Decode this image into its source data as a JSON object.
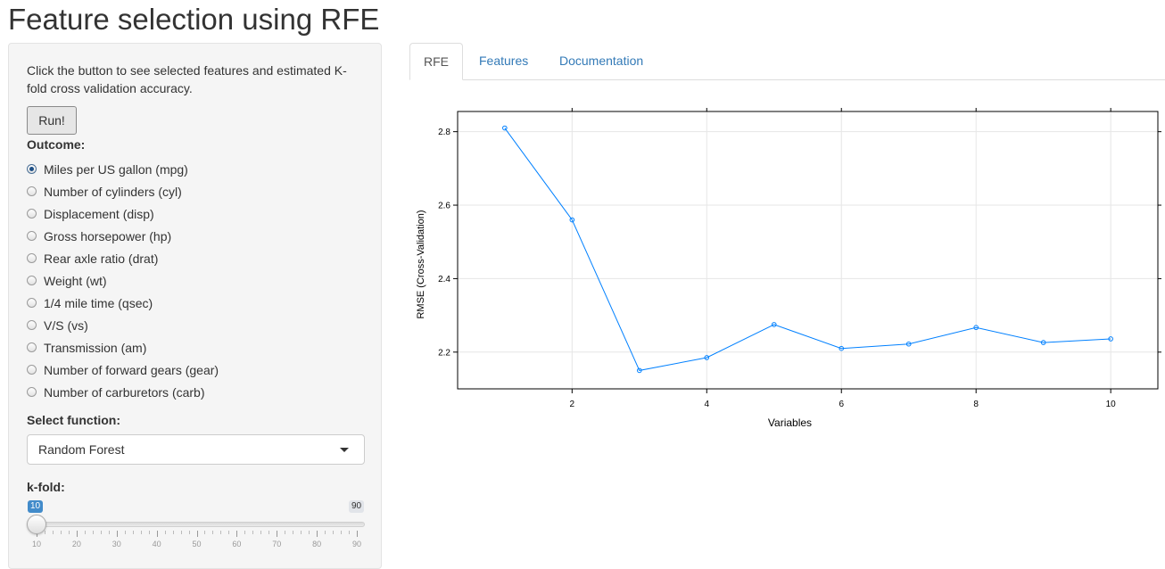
{
  "page": {
    "title": "Feature selection using RFE"
  },
  "sidebar": {
    "help_text": "Click the button to see selected features and estimated K-fold cross validation accuracy.",
    "run_label": "Run!",
    "outcome_label": "Outcome:",
    "outcomes": [
      {
        "label": "Miles per US gallon (mpg)",
        "checked": true
      },
      {
        "label": "Number of cylinders (cyl)",
        "checked": false
      },
      {
        "label": "Displacement (disp)",
        "checked": false
      },
      {
        "label": "Gross horsepower (hp)",
        "checked": false
      },
      {
        "label": "Rear axle ratio (drat)",
        "checked": false
      },
      {
        "label": "Weight (wt)",
        "checked": false
      },
      {
        "label": "1/4 mile time (qsec)",
        "checked": false
      },
      {
        "label": "V/S (vs)",
        "checked": false
      },
      {
        "label": "Transmission (am)",
        "checked": false
      },
      {
        "label": "Number of forward gears (gear)",
        "checked": false
      },
      {
        "label": "Number of carburetors (carb)",
        "checked": false
      }
    ],
    "function_label": "Select function:",
    "function_value": "Random Forest",
    "kfold_label": "k-fold:",
    "slider": {
      "min": 10,
      "max": 90,
      "value": 10,
      "min_badge": "10",
      "max_badge": "90",
      "tick_labels": [
        "10",
        "20",
        "30",
        "40",
        "50",
        "60",
        "70",
        "80",
        "90"
      ]
    }
  },
  "tabs": [
    {
      "label": "RFE",
      "active": true
    },
    {
      "label": "Features",
      "active": false
    },
    {
      "label": "Documentation",
      "active": false
    }
  ],
  "chart_data": {
    "type": "line",
    "title": "",
    "xlabel": "Variables",
    "ylabel": "RMSE (Cross-Validation)",
    "x": [
      1,
      2,
      3,
      4,
      5,
      6,
      7,
      8,
      9,
      10
    ],
    "y": [
      2.81,
      2.56,
      2.15,
      2.185,
      2.275,
      2.21,
      2.222,
      2.267,
      2.226,
      2.236
    ],
    "xlim": [
      0.3,
      10.7
    ],
    "ylim": [
      2.1,
      2.855
    ],
    "x_ticks": [
      2,
      4,
      6,
      8,
      10
    ],
    "y_ticks": [
      2.2,
      2.4,
      2.6,
      2.8
    ],
    "grid": true,
    "line_color": "#0080ff"
  }
}
